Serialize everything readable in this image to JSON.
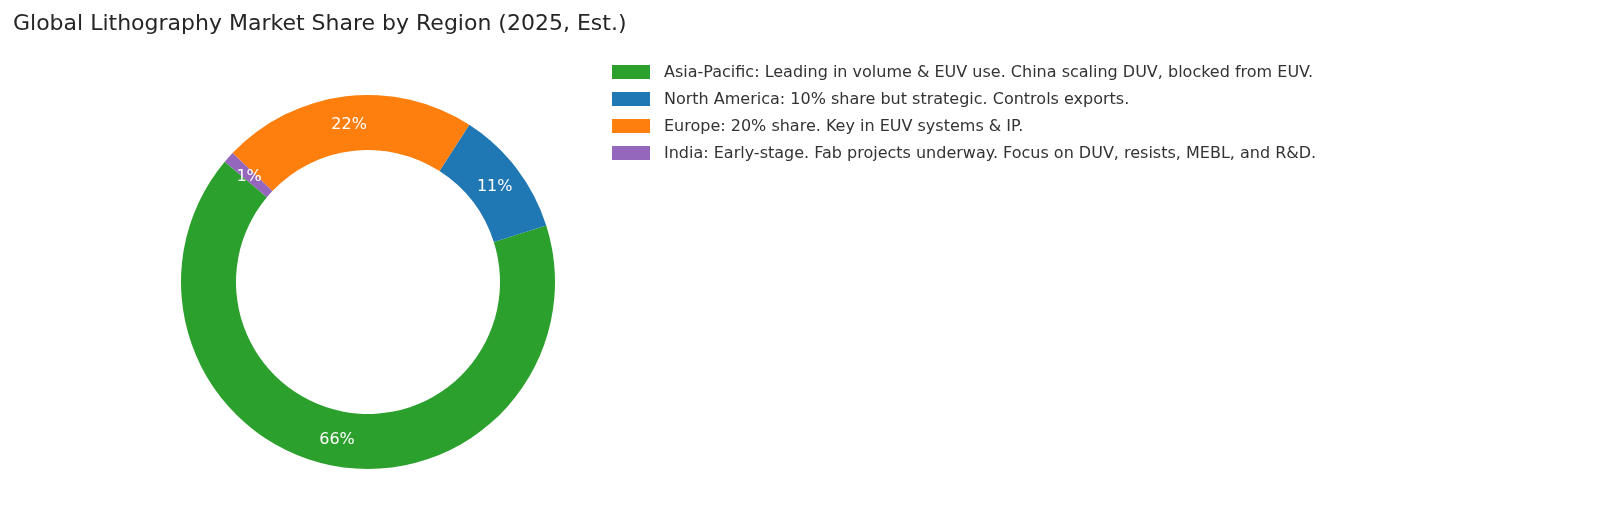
{
  "chart_data": {
    "type": "donut",
    "title": "Global Lithography Market Share by Region (2025, Est.)",
    "categories": [
      "Asia-Pacific: Leading in volume & EUV use. China scaling DUV, blocked from EUV.",
      "North America: 10% share but strategic. Controls exports.",
      "Europe: 20% share. Key in EUV systems & IP.",
      "India: Early-stage. Fab projects underway. Focus on DUV, resists, MEBL, and R&D."
    ],
    "values": [
      66,
      11,
      22,
      1
    ],
    "colors": [
      "#2ca02c",
      "#1f77b4",
      "#ff7f0e",
      "#9467bd"
    ],
    "value_labels": [
      "66%",
      "11%",
      "22%",
      "1%"
    ],
    "legend": "top right"
  }
}
